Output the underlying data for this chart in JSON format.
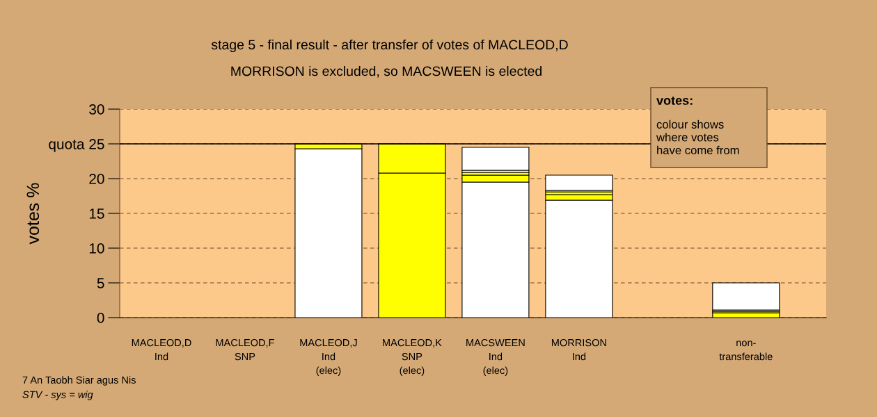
{
  "chart_data": {
    "type": "bar",
    "stacked": true,
    "title": "stage 5 - final result - after transfer of votes of MACLEOD,D",
    "subtitle": "MORRISON is excluded, so MACSWEEN is elected",
    "ylabel": "votes %",
    "categories": [
      "MACLEOD,D\nInd",
      "MACLEOD,F\nSNP",
      "MACLEOD,J\nInd\n(elec)",
      "MACLEOD,K\nSNP\n(elec)",
      "MACSWEEN\nInd\n(elec)",
      "MORRISON\nInd",
      null,
      "non-\ntransferable"
    ],
    "series": [
      {
        "values": [
          null,
          null,
          24.3,
          20.8,
          19.5,
          16.9,
          null,
          0.7
        ],
        "colors": [
          "#ffffff",
          "#ffffff",
          "#ffffff",
          "#ffff00",
          "#ffffff",
          "#ffffff",
          "#ffffff",
          "#ffff00"
        ]
      },
      {
        "values": [
          null,
          null,
          0.7,
          4.2,
          1.0,
          0.8,
          null,
          0.2
        ],
        "colors": [
          "#ffff00",
          "#ffff00",
          "#ffff00",
          "#ffff00",
          "#ffff00",
          "#ffff00",
          "#ffff00",
          "#ffff00"
        ]
      },
      {
        "values": [
          null,
          null,
          null,
          null,
          0.4,
          0.4,
          null,
          0.2
        ],
        "colors": [
          "#ffff00",
          "#ffff00",
          "#ffff00",
          "#ffff00",
          "#ffff00",
          "#ffff00",
          "#ffff00",
          "#ffffff"
        ]
      },
      {
        "values": [
          null,
          null,
          null,
          null,
          0.3,
          0.2,
          null,
          3.9
        ],
        "colors": [
          "#ffffff",
          "#ffffff",
          "#ffffff",
          "#ffffff",
          "#ffffff",
          "#ffffff",
          "#ffffff",
          "#ffffff"
        ]
      },
      {
        "values": [
          null,
          null,
          null,
          null,
          3.3,
          2.2,
          null,
          null
        ],
        "colors": [
          "#ffffff",
          "#ffffff",
          "#ffffff",
          "#ffffff",
          "#ffffff",
          "#ffffff",
          "#ffffff",
          "#ffffff"
        ]
      }
    ],
    "ylim": [
      0,
      30
    ],
    "yticks": [
      0,
      5,
      10,
      15,
      20,
      {
        "value": 25,
        "label": "quota 25"
      },
      30
    ],
    "grid": "y",
    "ref_lines": [
      {
        "axis": "y",
        "value": 25,
        "color": "#000000",
        "line_style": "solid"
      }
    ],
    "annotations": [
      "votes:",
      "colour shows\nwhere votes\nhave come from",
      "7 An Taobh Siar agus Nis",
      "STV - sys = wig"
    ]
  }
}
